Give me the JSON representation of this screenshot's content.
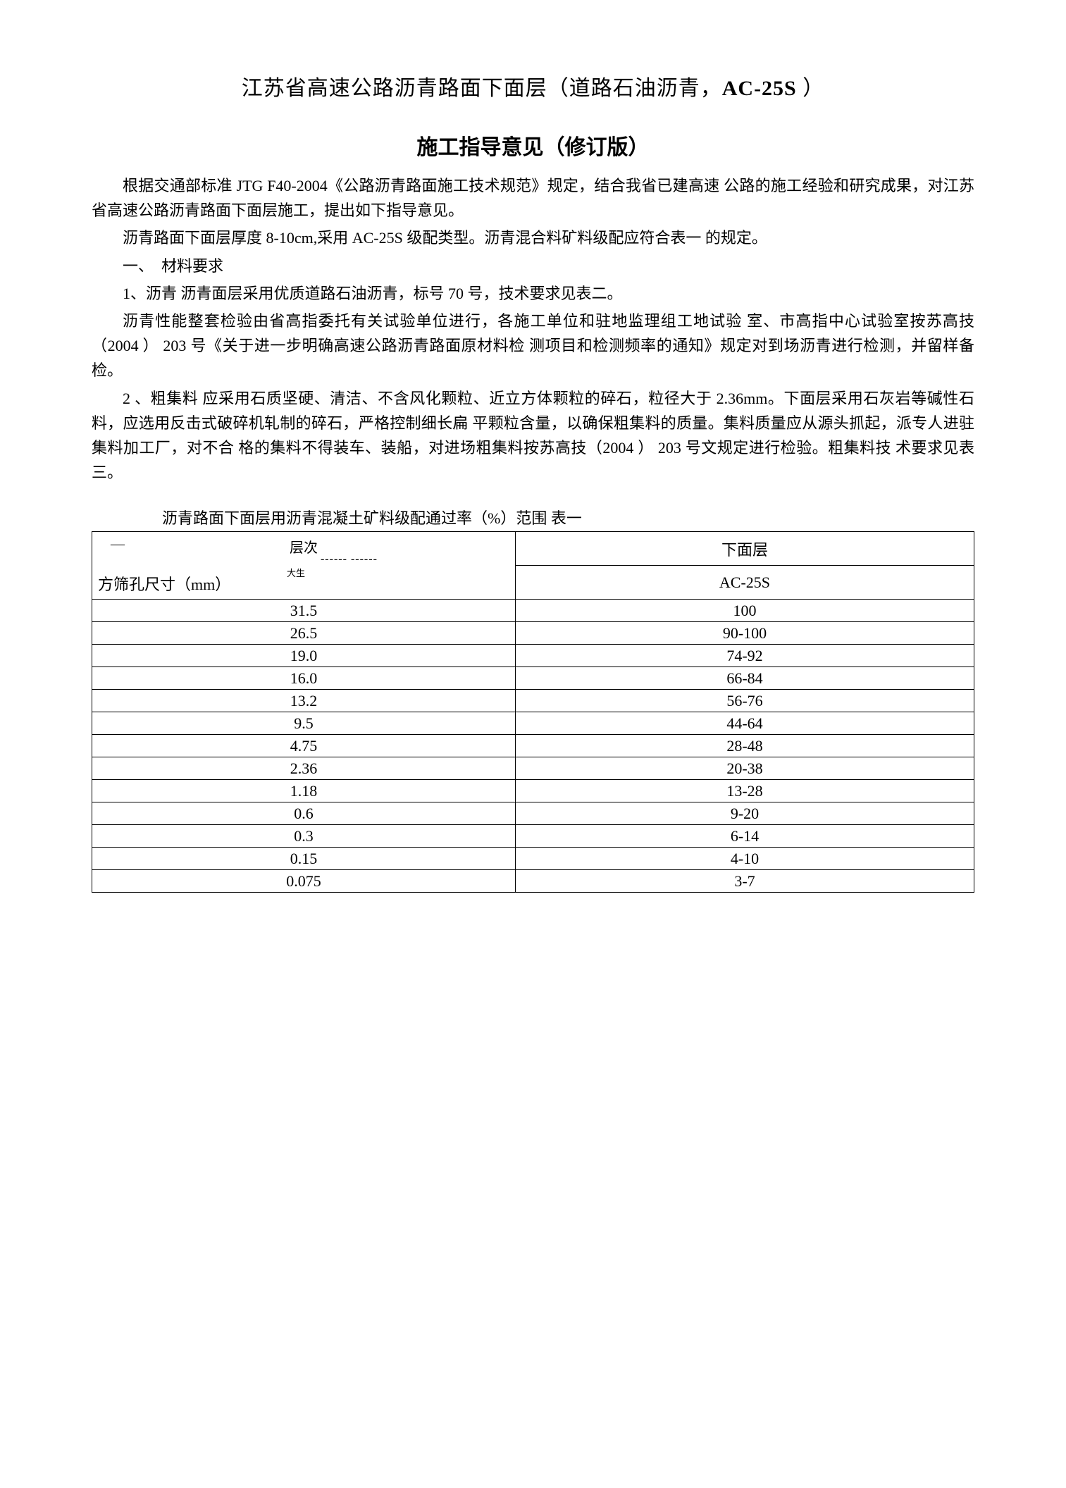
{
  "title_main_prefix": "江苏省高速公路沥青路面下面层（道路石油沥青，",
  "title_main_bold": "AC-25S",
  "title_main_suffix": " ）",
  "title_sub": "施工指导意见（修订版）",
  "para1": "根据交通部标准 JTG F40-2004《公路沥青路面施工技术规范》规定，结合我省已建高速 公路的施工经验和研究成果，对江苏省高速公路沥青路面下面层施工，提出如下指导意见。",
  "para2": "沥青路面下面层厚度 8-10cm,采用 AC-25S 级配类型。沥青混合料矿料级配应符合表一 的规定。",
  "section1": "一、　材料要求",
  "item1": "1、沥青 沥青面层采用优质道路石油沥青，标号 70 号，技术要求见表二。",
  "para3": "沥青性能整套检验由省高指委托有关试验单位进行，各施工单位和驻地监理组工地试验 室、市高指中心试验室按苏高技（2004 ） 203 号《关于进一步明确高速公路沥青路面原材料检 测项目和检测频率的通知》规定对到场沥青进行检测，并留样备检。",
  "item2": "2 、粗集料 应采用石质坚硬、清洁、不含风化颗粒、近立方体颗粒的碎石，粒径大于 2.36mm。下面层采用石灰岩等碱性石料，应选用反击式破碎机轧制的碎石，严格控制细长扁 平颗粒含量，以确保粗集料的质量。集料质量应从源头抓起，派专人进驻集料加工厂，对不合 格的集料不得装车、装船，对进场粗集料按苏高技（2004 ） 203 号文规定进行检验。粗集料技 术要求见表三。",
  "table_caption": "沥青路面下面层用沥青混凝土矿料级配通过率（%）范围  表一",
  "header_left_top": "层次",
  "header_left_dash": "—",
  "header_left_dashes": "------  ------",
  "header_left_small": "大生",
  "header_left_bottom": "方筛孔尺寸（mm）",
  "header_right_top": "下面层",
  "header_right_bottom": "AC-25S",
  "rows": [
    {
      "size": "31.5",
      "range": "100"
    },
    {
      "size": "26.5",
      "range": "90-100"
    },
    {
      "size": "19.0",
      "range": "74-92"
    },
    {
      "size": "16.0",
      "range": "66-84"
    },
    {
      "size": "13.2",
      "range": "56-76"
    },
    {
      "size": "9.5",
      "range": "44-64"
    },
    {
      "size": "4.75",
      "range": "28-48"
    },
    {
      "size": "2.36",
      "range": "20-38"
    },
    {
      "size": "1.18",
      "range": "13-28"
    },
    {
      "size": "0.6",
      "range": "9-20"
    },
    {
      "size": "0.3",
      "range": "6-14"
    },
    {
      "size": "0.15",
      "range": "4-10"
    },
    {
      "size": "0.075",
      "range": "3-7"
    }
  ]
}
